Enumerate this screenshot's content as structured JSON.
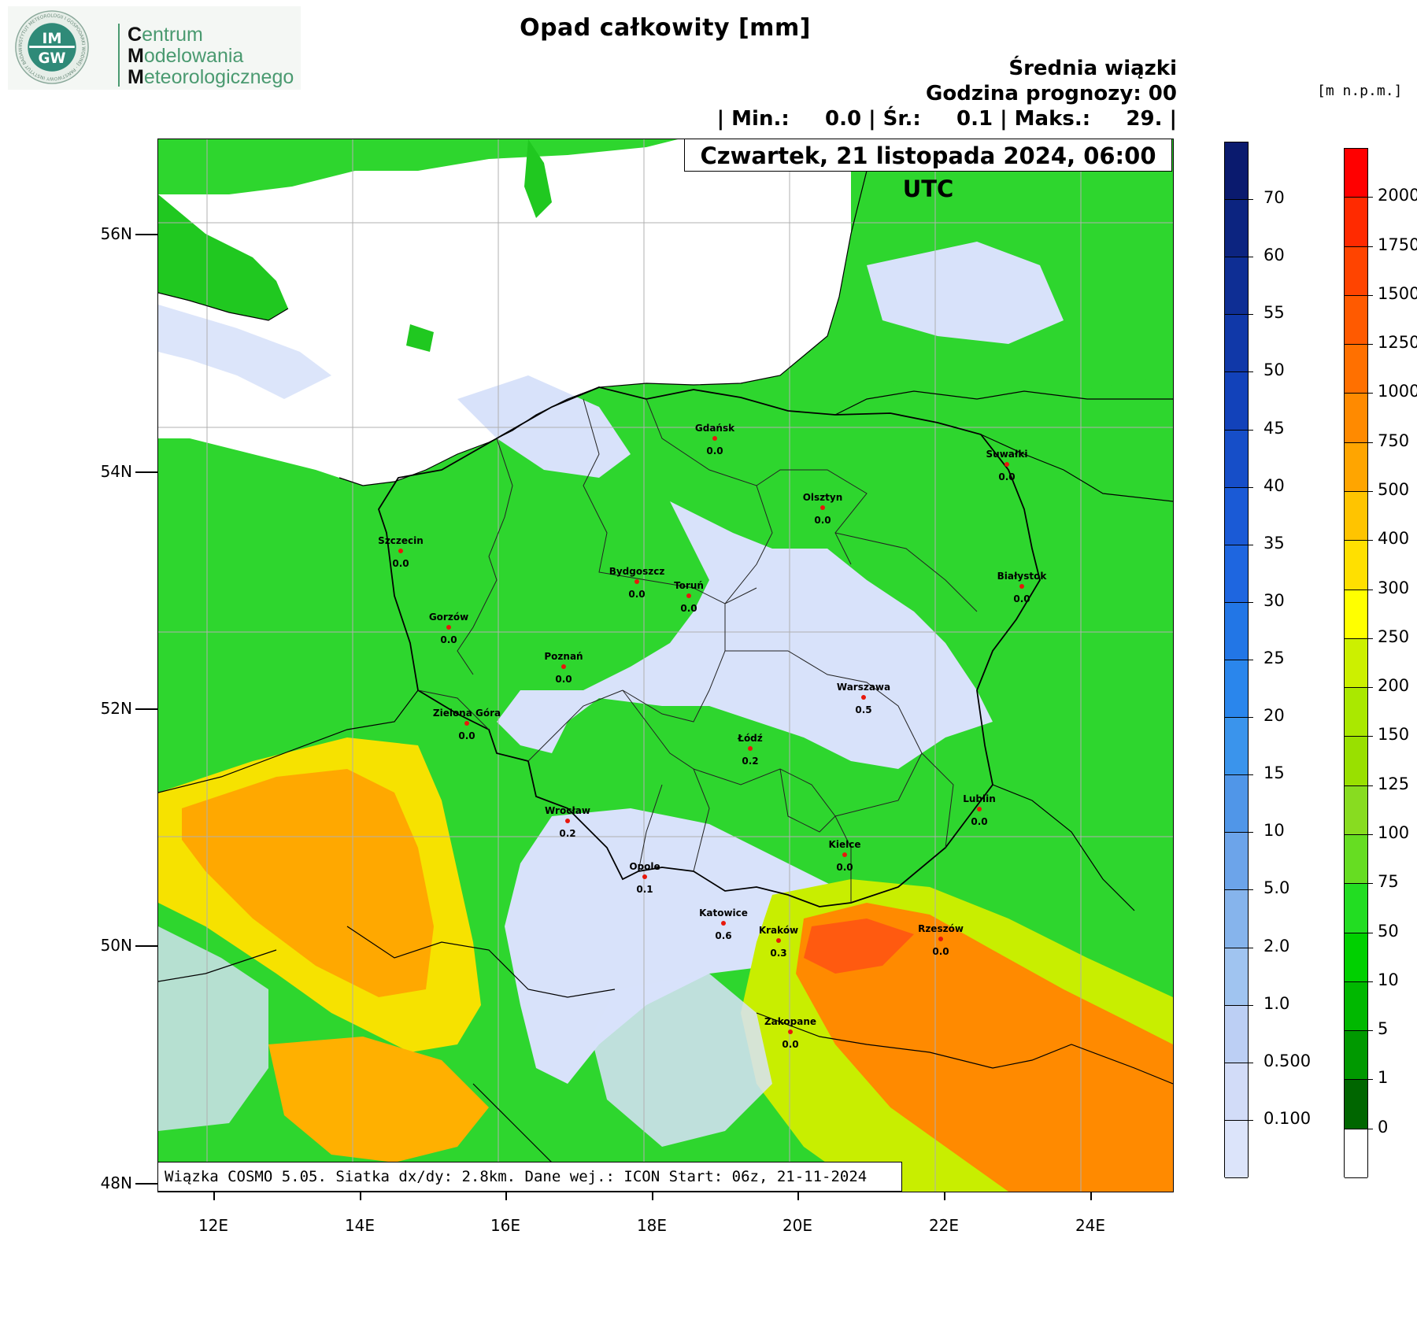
{
  "header": {
    "title": "Opad całkowity [mm]",
    "subtitle_line1": "Średnia wiązki",
    "subtitle_line2": "Godzina prognozy: 00",
    "stats_line": "| Min.:     0.0 | Śr.:     0.1 | Maks.:     29. |",
    "elevation_unit": "[m  n.p.m.]"
  },
  "logo": {
    "badge_line1": "IM",
    "badge_line2": "GW",
    "badge_ring_text": "INSTYTUT METEOROLOGII I GOSPODARKI WODNEJ · PAŃSTWOWY INSTYTUT BADAWCZY ·",
    "org_lines": [
      {
        "initial": "C",
        "rest": "entrum"
      },
      {
        "initial": "M",
        "rest": "odelowania"
      },
      {
        "initial": "M",
        "rest": "eteorologicznego"
      }
    ]
  },
  "map": {
    "date_label": "Czwartek, 21 listopada 2024, 06:00 UTC",
    "footer_label": "Wiązka COSMO 5.05. Siatka dx/dy: 2.8km. Dane wej.: ICON Start: 06z, 21-11-2024",
    "lat_labels": [
      "56N",
      "54N",
      "52N",
      "50N",
      "48N"
    ],
    "lon_labels": [
      "12E",
      "14E",
      "16E",
      "18E",
      "20E",
      "22E",
      "24E"
    ]
  },
  "cities": [
    {
      "name": "Gdańsk",
      "value": "0.0"
    },
    {
      "name": "Suwałki",
      "value": "0.0"
    },
    {
      "name": "Olsztyn",
      "value": "0.0"
    },
    {
      "name": "Szczecin",
      "value": "0.0"
    },
    {
      "name": "Bydgoszcz",
      "value": "0.0"
    },
    {
      "name": "Toruń",
      "value": "0.0"
    },
    {
      "name": "Białystok",
      "value": "0.0"
    },
    {
      "name": "Gorzów",
      "value": "0.0"
    },
    {
      "name": "Poznań",
      "value": "0.0"
    },
    {
      "name": "Warszawa",
      "value": "0.5"
    },
    {
      "name": "Zielona Góra",
      "value": "0.0"
    },
    {
      "name": "Łódź",
      "value": "0.2"
    },
    {
      "name": "Lublin",
      "value": "0.0"
    },
    {
      "name": "Wrocław",
      "value": "0.2"
    },
    {
      "name": "Kielce",
      "value": "0.0"
    },
    {
      "name": "Opole",
      "value": "0.1"
    },
    {
      "name": "Katowice",
      "value": "0.6"
    },
    {
      "name": "Kraków",
      "value": "0.3"
    },
    {
      "name": "Rzeszów",
      "value": "0.0"
    },
    {
      "name": "Zakopane",
      "value": "0.0"
    }
  ],
  "precip_colorbar": {
    "labels": [
      "70",
      "60",
      "55",
      "50",
      "45",
      "40",
      "35",
      "30",
      "25",
      "20",
      "15",
      "10",
      "5.0",
      "2.0",
      "1.0",
      "0.500",
      "0.100"
    ],
    "colors": [
      "#0a1a6e",
      "#0c2480",
      "#0e2e94",
      "#1038a8",
      "#1242ba",
      "#164ec8",
      "#1a5ad6",
      "#1e66e0",
      "#2276e6",
      "#2a86ec",
      "#3a94ec",
      "#5096e8",
      "#6ca4ea",
      "#86b4ec",
      "#a0c4f0",
      "#bccff4",
      "#d2dcf8",
      "#dce4fa"
    ]
  },
  "elevation_colorbar": {
    "labels": [
      "2000",
      "1750",
      "1500",
      "1250",
      "1000",
      "750",
      "500",
      "400",
      "300",
      "250",
      "200",
      "150",
      "125",
      "100",
      "75",
      "50",
      "10",
      "5",
      "1",
      "0"
    ],
    "colors": [
      "#ff0000",
      "#ff2a00",
      "#ff4400",
      "#ff5a00",
      "#ff7000",
      "#ff8a00",
      "#ffa500",
      "#ffc400",
      "#ffe000",
      "#ffff00",
      "#ccf000",
      "#aae800",
      "#99e000",
      "#88dc20",
      "#66dd22",
      "#22dd22",
      "#00d000",
      "#00b800",
      "#009900",
      "#006600",
      "#ffffff"
    ]
  }
}
